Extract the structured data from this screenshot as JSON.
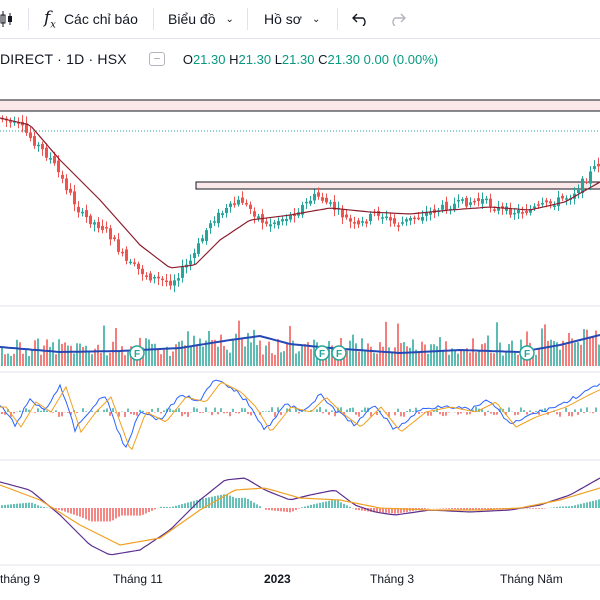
{
  "toolbar": {
    "indicators_icon": "fx-icon",
    "indicators_label": "Các chỉ báo",
    "chart_label": "Biểu đồ",
    "profile_label": "Hồ sơ",
    "undo_icon": "undo-icon",
    "redo_icon": "redo-icon"
  },
  "legend": {
    "symbol": "DIRECT · 1D · HSX",
    "open_key": "O",
    "open": "21.30",
    "high_key": "H",
    "high": "21.30",
    "low_key": "L",
    "low": "21.30",
    "close_key": "C",
    "close": "21.30",
    "change": "0.00 (0.00%)"
  },
  "colors": {
    "up": "#26a69a",
    "down": "#ef5350",
    "ma": "#8b1c2c",
    "volume_ma": "#2548b5",
    "macd_line": "#2962ff",
    "signal_line": "#f0a020",
    "stoch_k": "#5b2d8e"
  },
  "x_axis": {
    "labels": [
      "tháng 9",
      "Tháng 11",
      "2023",
      "Tháng 3",
      "Tháng Năm"
    ]
  },
  "event_markers": {
    "label": "F"
  }
}
